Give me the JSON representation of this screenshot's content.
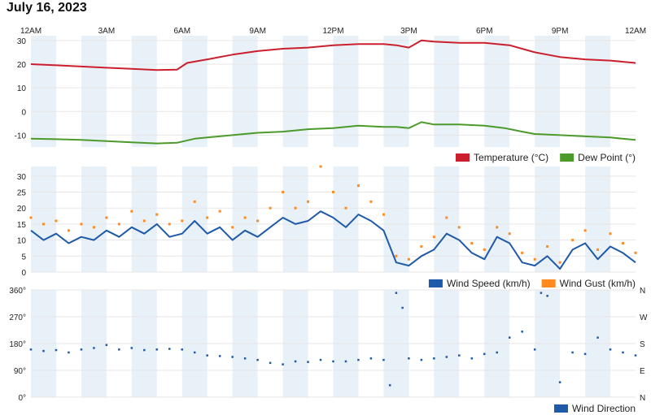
{
  "page": {
    "title": "July 16, 2023"
  },
  "time_axis": {
    "labels": [
      "12AM",
      "3AM",
      "6AM",
      "9AM",
      "12PM",
      "3PM",
      "6PM",
      "9PM",
      "12AM"
    ],
    "hours": [
      0,
      3,
      6,
      9,
      12,
      15,
      18,
      21,
      24
    ]
  },
  "colors": {
    "temperature": "#cc1f2d",
    "dew_point": "#4c9a2a",
    "wind_speed": "#1f5aa8",
    "wind_gust": "#ff8a1e",
    "wind_direction": "#1f5aa8",
    "band": "#e8f0f8",
    "grid": "#e6e6e6"
  },
  "chart_data": [
    {
      "type": "line",
      "panel": "temperature",
      "ylim": [
        -15,
        32
      ],
      "yticks": [
        {
          "value": 30,
          "label": "30"
        },
        {
          "value": 20,
          "label": "20"
        },
        {
          "value": 10,
          "label": "10"
        },
        {
          "value": 0,
          "label": "0"
        },
        {
          "value": -10,
          "label": "-10"
        }
      ],
      "series": [
        {
          "name": "Temperature (°C)",
          "x": [
            0,
            1,
            2,
            3,
            4,
            5,
            5.8,
            6.2,
            7,
            8,
            9,
            10,
            11,
            12,
            13,
            14,
            14.5,
            15,
            15.5,
            16,
            17,
            18,
            19,
            20,
            21,
            22,
            23,
            24
          ],
          "y": [
            20,
            19.5,
            19,
            18.5,
            18,
            17.5,
            17.7,
            20.5,
            22,
            24,
            25.5,
            26.5,
            27,
            28,
            28.5,
            28.5,
            28,
            27,
            30,
            29.5,
            29,
            29,
            28,
            25,
            23,
            22,
            21.5,
            20.5
          ]
        },
        {
          "name": "Dew Point (°)",
          "x": [
            0,
            1,
            2,
            3,
            4,
            5,
            5.8,
            6.5,
            7,
            8,
            9,
            10,
            11,
            12,
            13,
            14,
            14.5,
            15,
            15.5,
            16,
            17,
            18,
            18.8,
            19.5,
            20,
            21,
            22,
            23,
            24
          ],
          "y": [
            -11.5,
            -11.7,
            -12,
            -12.5,
            -13,
            -13.5,
            -13.2,
            -11.5,
            -11,
            -10,
            -9,
            -8.5,
            -7.5,
            -7,
            -6,
            -6.5,
            -6.5,
            -7,
            -4.5,
            -5.5,
            -5.5,
            -6,
            -7,
            -8.5,
            -9.5,
            -10,
            -10.5,
            -11,
            -12
          ]
        }
      ]
    },
    {
      "type": "line",
      "panel": "wind",
      "ylim": [
        0,
        33
      ],
      "yticks": [
        {
          "value": 30,
          "label": "30"
        },
        {
          "value": 25,
          "label": "25"
        },
        {
          "value": 20,
          "label": "20"
        },
        {
          "value": 15,
          "label": "15"
        },
        {
          "value": 10,
          "label": "10"
        },
        {
          "value": 5,
          "label": "5"
        },
        {
          "value": 0,
          "label": "0"
        }
      ],
      "series": [
        {
          "name": "Wind Speed (km/h)",
          "x": [
            0,
            0.5,
            1,
            1.5,
            2,
            2.5,
            3,
            3.5,
            4,
            4.5,
            5,
            5.5,
            6,
            6.5,
            7,
            7.5,
            8,
            8.5,
            9,
            9.5,
            10,
            10.5,
            11,
            11.5,
            12,
            12.5,
            13,
            13.5,
            14,
            14.5,
            15,
            15.5,
            16,
            16.5,
            17,
            17.5,
            18,
            18.5,
            19,
            19.5,
            20,
            20.5,
            21,
            21.5,
            22,
            22.5,
            23,
            23.5,
            24
          ],
          "y": [
            13,
            10,
            12,
            9,
            11,
            10,
            13,
            11,
            14,
            12,
            15,
            11,
            12,
            16,
            12,
            14,
            10,
            13,
            11,
            14,
            17,
            15,
            16,
            19,
            17,
            14,
            18,
            16,
            13,
            3,
            2,
            5,
            7,
            12,
            10,
            6,
            4,
            11,
            9,
            3,
            2,
            5,
            1,
            7,
            9,
            4,
            8,
            6,
            3
          ]
        },
        {
          "name": "Wind Gust (km/h)",
          "x": [
            0,
            0.5,
            1,
            1.5,
            2,
            2.5,
            3,
            3.5,
            4,
            4.5,
            5,
            5.5,
            6,
            6.5,
            7,
            7.5,
            8,
            8.5,
            9,
            9.5,
            10,
            10.5,
            11,
            11.5,
            12,
            12.5,
            13,
            13.5,
            14,
            14.5,
            15,
            15.5,
            16,
            16.5,
            17,
            17.5,
            18,
            18.5,
            19,
            19.5,
            20,
            20.5,
            21,
            21.5,
            22,
            22.5,
            23,
            23.5,
            24
          ],
          "y": [
            17,
            15,
            16,
            13,
            15,
            14,
            17,
            15,
            19,
            16,
            18,
            15,
            16,
            22,
            17,
            19,
            14,
            17,
            16,
            20,
            25,
            20,
            22,
            33,
            25,
            20,
            27,
            22,
            18,
            5,
            4,
            8,
            11,
            17,
            14,
            9,
            7,
            14,
            12,
            6,
            4,
            8,
            3,
            10,
            13,
            7,
            12,
            9,
            6
          ]
        }
      ]
    },
    {
      "type": "scatter",
      "panel": "wind_direction",
      "ylim": [
        0,
        360
      ],
      "yticks": [
        {
          "value": 360,
          "label": "360°"
        },
        {
          "value": 270,
          "label": "270°"
        },
        {
          "value": 180,
          "label": "180°"
        },
        {
          "value": 90,
          "label": "90°"
        },
        {
          "value": 0,
          "label": "0°"
        }
      ],
      "yticks_right": [
        {
          "value": 360,
          "label": "N"
        },
        {
          "value": 270,
          "label": "W"
        },
        {
          "value": 180,
          "label": "S"
        },
        {
          "value": 90,
          "label": "E"
        },
        {
          "value": 0,
          "label": "N"
        }
      ],
      "series": [
        {
          "name": "Wind Direction",
          "x": [
            0,
            0.5,
            1,
            1.5,
            2,
            2.5,
            3,
            3.5,
            4,
            4.5,
            5,
            5.5,
            6,
            6.5,
            7,
            7.5,
            8,
            8.5,
            9,
            9.5,
            10,
            10.5,
            11,
            11.5,
            12,
            12.5,
            13,
            13.5,
            14,
            14.25,
            14.5,
            14.75,
            15,
            15.5,
            16,
            16.5,
            17,
            17.5,
            18,
            18.5,
            19,
            19.5,
            20,
            20.25,
            20.5,
            21,
            21.5,
            22,
            22.5,
            23,
            23.5,
            24
          ],
          "y": [
            160,
            155,
            158,
            150,
            160,
            165,
            175,
            160,
            165,
            158,
            160,
            162,
            160,
            150,
            140,
            138,
            135,
            130,
            125,
            115,
            110,
            120,
            118,
            125,
            120,
            120,
            125,
            130,
            125,
            40,
            350,
            300,
            130,
            125,
            130,
            135,
            140,
            130,
            145,
            150,
            200,
            220,
            160,
            350,
            340,
            50,
            150,
            145,
            200,
            160,
            150,
            140
          ]
        }
      ]
    }
  ]
}
